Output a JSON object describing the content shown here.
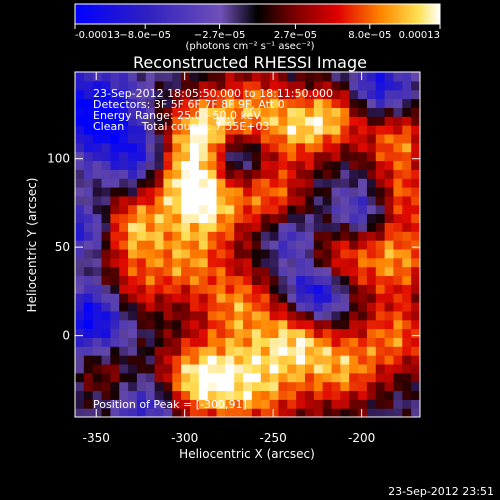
{
  "chart_data": {
    "type": "heatmap",
    "title": "Reconstructed RHESSI Image",
    "xlabel": "Heliocentric X (arcsec)",
    "ylabel": "Heliocentric Y (arcsec)",
    "xlim": [
      -362,
      -167
    ],
    "ylim": [
      -46,
      149
    ],
    "x_ticks": [
      -350,
      -300,
      -250,
      -200
    ],
    "y_ticks": [
      0,
      50,
      100
    ],
    "colorbar": {
      "min": -0.00013,
      "max": 0.00013,
      "tick_values": [
        -0.00013,
        -8e-05,
        -2.7e-05,
        2.7e-05,
        8e-05,
        0.00013
      ],
      "tick_labels": [
        "-0.00013",
        "−8.0e−05",
        "−2.7e−05",
        "2.7e−05",
        "8.0e−05",
        "0.00013"
      ],
      "units": "(photons cm⁻² s⁻¹ asec⁻²)"
    },
    "info_lines": [
      "23-Sep-2012 18:05:50.000 to 18:11:50.000",
      "Detectors: 3F 5F 6F 7F 8F 9F, Att 0",
      "Energy Range: 25.0 - 50.0 keV",
      "Clean     Total counts: 7.55E+03"
    ],
    "peak_label": "Position of Peak = [-300,91]",
    "peak_position": [
      -300,
      91
    ],
    "timestamp": "23-Sep-2012 23:51"
  }
}
